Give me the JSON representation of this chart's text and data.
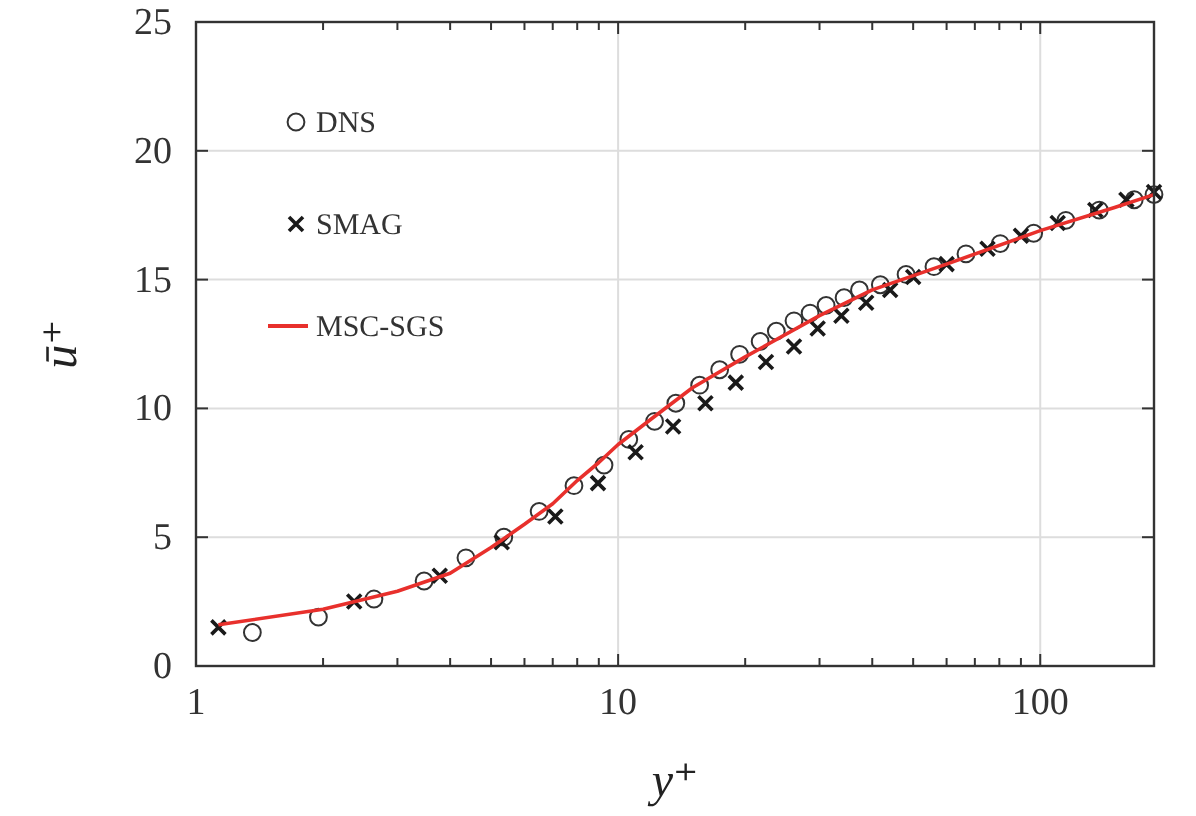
{
  "chart_data": {
    "type": "scatter",
    "xlabel": "y⁺",
    "ylabel": "ū⁺",
    "log": "x",
    "xlim": [
      1,
      186
    ],
    "ylim": [
      0,
      25
    ],
    "xticks": [
      1,
      {
        "value": 2,
        "label": null
      },
      {
        "value": 3,
        "label": null
      },
      {
        "value": 4,
        "label": null
      },
      {
        "value": 5,
        "label": null
      },
      {
        "value": 6,
        "label": null
      },
      {
        "value": 7,
        "label": null
      },
      {
        "value": 8,
        "label": null
      },
      {
        "value": 9,
        "label": null
      },
      10,
      {
        "value": 20,
        "label": null
      },
      {
        "value": 30,
        "label": null
      },
      {
        "value": 40,
        "label": null
      },
      {
        "value": 50,
        "label": null
      },
      {
        "value": 60,
        "label": null
      },
      {
        "value": 70,
        "label": null
      },
      {
        "value": 80,
        "label": null
      },
      {
        "value": 90,
        "label": null
      },
      100
    ],
    "yticks": [
      0,
      5,
      10,
      15,
      20,
      25
    ],
    "grid": true,
    "legend": "top left",
    "series": [
      {
        "name": "DNS",
        "marker": "circle",
        "color": "#333333",
        "x": [
          1.36,
          1.95,
          2.64,
          3.47,
          4.36,
          5.36,
          6.5,
          7.86,
          9.26,
          10.6,
          12.2,
          13.7,
          15.6,
          17.4,
          19.4,
          21.7,
          23.7,
          26.1,
          28.5,
          31.1,
          34.3,
          37.3,
          41.8,
          48.1,
          56,
          66.7,
          80.4,
          96.5,
          115,
          138,
          167,
          186
        ],
        "values": [
          1.3,
          1.9,
          2.6,
          3.3,
          4.2,
          5.0,
          6.0,
          7.0,
          7.8,
          8.8,
          9.5,
          10.2,
          10.9,
          11.5,
          12.1,
          12.6,
          13.0,
          13.4,
          13.7,
          14.0,
          14.3,
          14.6,
          14.8,
          15.2,
          15.5,
          16.0,
          16.4,
          16.8,
          17.3,
          17.7,
          18.1,
          18.3
        ]
      },
      {
        "name": "SMAG",
        "marker": "cross",
        "color": "#1a1a1a",
        "x": [
          1.13,
          2.37,
          3.78,
          5.3,
          7.1,
          8.96,
          11,
          13.5,
          16.1,
          19,
          22.4,
          26.1,
          29.7,
          33.8,
          38.7,
          44.1,
          50,
          60,
          75,
          90,
          110,
          135,
          160,
          186
        ],
        "values": [
          1.5,
          2.5,
          3.5,
          4.8,
          5.8,
          7.1,
          8.3,
          9.3,
          10.2,
          11.0,
          11.8,
          12.4,
          13.1,
          13.6,
          14.1,
          14.6,
          15.1,
          15.6,
          16.2,
          16.7,
          17.2,
          17.7,
          18.1,
          18.4
        ]
      },
      {
        "name": "MSC-SGS",
        "type": "line",
        "marker": "none",
        "color": "#e8302c",
        "x": [
          1.13,
          2,
          3,
          4,
          5,
          6,
          7,
          8,
          9,
          10,
          12,
          15,
          20,
          30,
          40,
          60,
          100,
          150,
          186
        ],
        "values": [
          1.6,
          2.2,
          2.9,
          3.6,
          4.6,
          5.5,
          6.3,
          7.2,
          7.9,
          8.6,
          9.6,
          10.8,
          12.0,
          13.6,
          14.6,
          15.6,
          16.9,
          17.8,
          18.3
        ]
      }
    ]
  }
}
